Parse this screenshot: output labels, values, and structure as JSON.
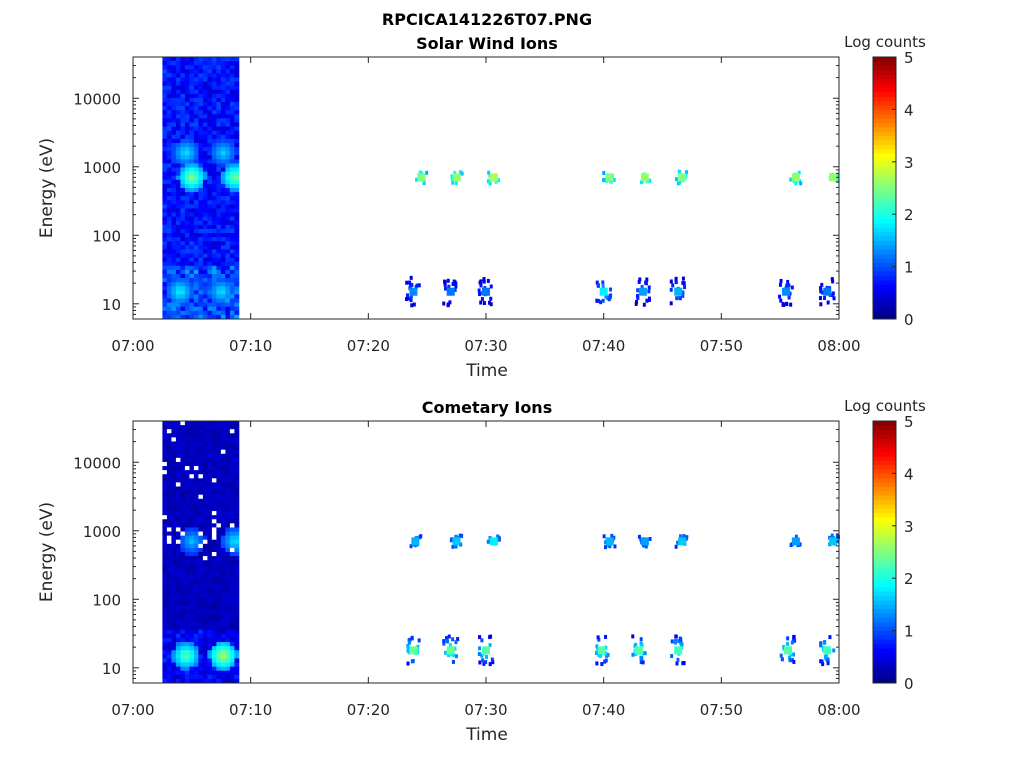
{
  "figure_title": "RPCICA141226T07.PNG",
  "chart_data": [
    {
      "type": "heatmap",
      "title": "Solar Wind Ions",
      "xlabel": "Time",
      "ylabel": "Energy (eV)",
      "x_range": [
        "07:00",
        "08:00"
      ],
      "x_ticks": [
        "07:00",
        "07:10",
        "07:20",
        "07:30",
        "07:40",
        "07:50",
        "08:00"
      ],
      "y_scale": "log",
      "y_range": [
        6,
        40000
      ],
      "y_ticks": [
        10,
        100,
        1000,
        10000
      ],
      "y_tick_labels": [
        "10",
        "100",
        "1000",
        "10000"
      ],
      "colorbar": {
        "label": "Log counts",
        "range": [
          0,
          5
        ],
        "ticks": [
          "0",
          "1",
          "2",
          "3",
          "4",
          "5"
        ],
        "colormap": "jet"
      },
      "continuous_block": {
        "start": "07:02:30",
        "end": "07:09:00",
        "background_level": 0.7,
        "bright_streaks": [
          {
            "time": "07:05:00",
            "energy": 700,
            "level": 2.6
          },
          {
            "time": "07:08:40",
            "energy": 700,
            "level": 2.5
          },
          {
            "time": "07:04:30",
            "energy": 1600,
            "level": 1.8
          },
          {
            "time": "07:07:40",
            "energy": 1600,
            "level": 1.7
          },
          {
            "time": "07:04:00",
            "energy": 15,
            "level": 1.9
          },
          {
            "time": "07:07:30",
            "energy": 15,
            "level": 1.8
          }
        ]
      },
      "events": [
        {
          "time": "07:24:30",
          "energy": 700,
          "level": 2.5
        },
        {
          "time": "07:27:30",
          "energy": 700,
          "level": 2.6
        },
        {
          "time": "07:30:40",
          "energy": 700,
          "level": 2.7
        },
        {
          "time": "07:40:30",
          "energy": 700,
          "level": 2.5
        },
        {
          "time": "07:43:30",
          "energy": 700,
          "level": 2.6
        },
        {
          "time": "07:46:40",
          "energy": 700,
          "level": 2.5
        },
        {
          "time": "07:56:20",
          "energy": 700,
          "level": 2.6
        },
        {
          "time": "07:59:30",
          "energy": 700,
          "level": 2.6
        },
        {
          "time": "07:23:50",
          "energy": 15,
          "level": 1.3
        },
        {
          "time": "07:27:00",
          "energy": 15,
          "level": 1.2
        },
        {
          "time": "07:30:00",
          "energy": 15,
          "level": 1.2
        },
        {
          "time": "07:40:00",
          "energy": 15,
          "level": 1.8
        },
        {
          "time": "07:43:20",
          "energy": 15,
          "level": 1.4
        },
        {
          "time": "07:46:20",
          "energy": 15,
          "level": 1.5
        },
        {
          "time": "07:55:30",
          "energy": 15,
          "level": 1.3
        },
        {
          "time": "07:59:00",
          "energy": 15,
          "level": 1.2
        }
      ]
    },
    {
      "type": "heatmap",
      "title": "Cometary Ions",
      "xlabel": "Time",
      "ylabel": "Energy (eV)",
      "x_range": [
        "07:00",
        "08:00"
      ],
      "x_ticks": [
        "07:00",
        "07:10",
        "07:20",
        "07:30",
        "07:40",
        "07:50",
        "08:00"
      ],
      "y_scale": "log",
      "y_range": [
        6,
        40000
      ],
      "y_ticks": [
        10,
        100,
        1000,
        10000
      ],
      "y_tick_labels": [
        "10",
        "100",
        "1000",
        "10000"
      ],
      "colorbar": {
        "label": "Log counts",
        "range": [
          0,
          5
        ],
        "ticks": [
          "0",
          "1",
          "2",
          "3",
          "4",
          "5"
        ],
        "colormap": "jet"
      },
      "continuous_block": {
        "start": "07:02:30",
        "end": "07:09:00",
        "background_level": 0.3,
        "bright_streaks": [
          {
            "time": "07:04:30",
            "energy": 15,
            "level": 2.4
          },
          {
            "time": "07:07:40",
            "energy": 15,
            "level": 2.8
          },
          {
            "time": "07:05:00",
            "energy": 700,
            "level": 1.6
          },
          {
            "time": "07:08:40",
            "energy": 700,
            "level": 1.8
          }
        ]
      },
      "events": [
        {
          "time": "07:24:00",
          "energy": 700,
          "level": 1.5
        },
        {
          "time": "07:27:30",
          "energy": 700,
          "level": 1.6
        },
        {
          "time": "07:30:40",
          "energy": 700,
          "level": 1.8
        },
        {
          "time": "07:40:30",
          "energy": 700,
          "level": 1.5
        },
        {
          "time": "07:43:30",
          "energy": 700,
          "level": 1.4
        },
        {
          "time": "07:46:40",
          "energy": 700,
          "level": 1.6
        },
        {
          "time": "07:56:20",
          "energy": 700,
          "level": 1.4
        },
        {
          "time": "07:59:30",
          "energy": 700,
          "level": 1.6
        },
        {
          "time": "07:23:50",
          "energy": 18,
          "level": 2.4
        },
        {
          "time": "07:27:00",
          "energy": 18,
          "level": 2.4
        },
        {
          "time": "07:30:00",
          "energy": 18,
          "level": 2.3
        },
        {
          "time": "07:39:50",
          "energy": 18,
          "level": 2.3
        },
        {
          "time": "07:43:00",
          "energy": 18,
          "level": 2.3
        },
        {
          "time": "07:46:20",
          "energy": 18,
          "level": 2.2
        },
        {
          "time": "07:55:40",
          "energy": 18,
          "level": 2.3
        },
        {
          "time": "07:59:00",
          "energy": 18,
          "level": 2.2
        }
      ]
    }
  ]
}
